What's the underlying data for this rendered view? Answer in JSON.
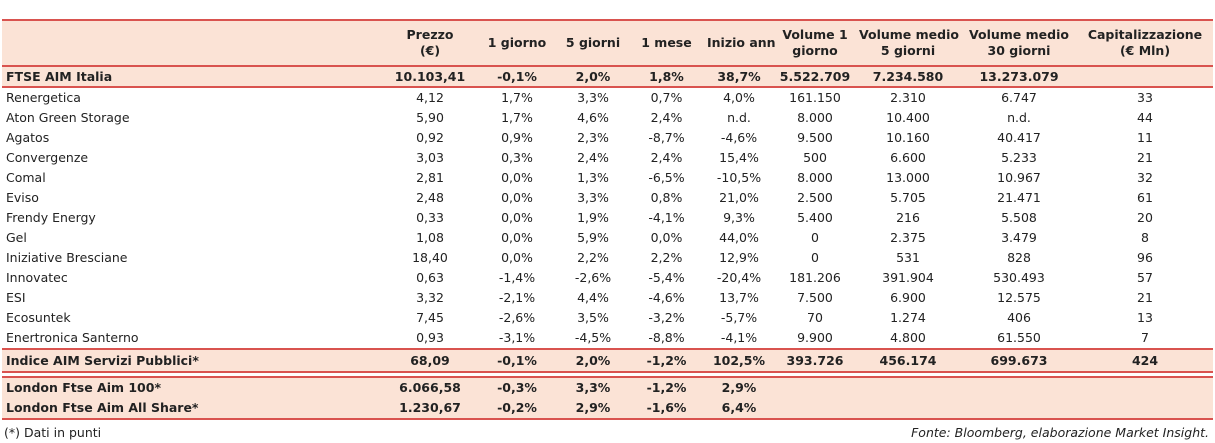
{
  "columns": [
    "",
    "Prezzo\n(€)",
    "1 giorno",
    "5 giorni",
    "1 mese",
    "Inizio anno",
    "Volume 1\ngiorno",
    "Volume medio\n5 giorni",
    "Volume medio\n30 giorni",
    "Capitalizzazione\n(€ Mln)"
  ],
  "main_index": [
    "FTSE AIM Italia",
    "10.103,41",
    "-0,1%",
    "2,0%",
    "1,8%",
    "38,7%",
    "5.522.709",
    "7.234.580",
    "13.273.079",
    ""
  ],
  "rows": [
    [
      "Renergetica",
      "4,12",
      "1,7%",
      "3,3%",
      "0,7%",
      "4,0%",
      "161.150",
      "2.310",
      "6.747",
      "33"
    ],
    [
      "Aton Green Storage",
      "5,90",
      "1,7%",
      "4,6%",
      "2,4%",
      "n.d.",
      "8.000",
      "10.400",
      "n.d.",
      "44"
    ],
    [
      "Agatos",
      "0,92",
      "0,9%",
      "2,3%",
      "-8,7%",
      "-4,6%",
      "9.500",
      "10.160",
      "40.417",
      "11"
    ],
    [
      "Convergenze",
      "3,03",
      "0,3%",
      "2,4%",
      "2,4%",
      "15,4%",
      "500",
      "6.600",
      "5.233",
      "21"
    ],
    [
      "Comal",
      "2,81",
      "0,0%",
      "1,3%",
      "-6,5%",
      "-10,5%",
      "8.000",
      "13.000",
      "10.967",
      "32"
    ],
    [
      "Eviso",
      "2,48",
      "0,0%",
      "3,3%",
      "0,8%",
      "21,0%",
      "2.500",
      "5.705",
      "21.471",
      "61"
    ],
    [
      "Frendy Energy",
      "0,33",
      "0,0%",
      "1,9%",
      "-4,1%",
      "9,3%",
      "5.400",
      "216",
      "5.508",
      "20"
    ],
    [
      "Gel",
      "1,08",
      "0,0%",
      "5,9%",
      "0,0%",
      "44,0%",
      "0",
      "2.375",
      "3.479",
      "8"
    ],
    [
      "Iniziative Bresciane",
      "18,40",
      "0,0%",
      "2,2%",
      "2,2%",
      "12,9%",
      "0",
      "531",
      "828",
      "96"
    ],
    [
      "Innovatec",
      "0,63",
      "-1,4%",
      "-2,6%",
      "-5,4%",
      "-20,4%",
      "181.206",
      "391.904",
      "530.493",
      "57"
    ],
    [
      "ESI",
      "3,32",
      "-2,1%",
      "4,4%",
      "-4,6%",
      "13,7%",
      "7.500",
      "6.900",
      "12.575",
      "21"
    ],
    [
      "Ecosuntek",
      "7,45",
      "-2,6%",
      "3,5%",
      "-3,2%",
      "-5,7%",
      "70",
      "1.274",
      "406",
      "13"
    ],
    [
      "Enertronica Santerno",
      "0,93",
      "-3,1%",
      "-4,5%",
      "-8,8%",
      "-4,1%",
      "9.900",
      "4.800",
      "61.550",
      "7"
    ]
  ],
  "sector_index": [
    "Indice AIM Servizi Pubblici*",
    "68,09",
    "-0,1%",
    "2,0%",
    "-1,2%",
    "102,5%",
    "393.726",
    "456.174",
    "699.673",
    "424"
  ],
  "london": [
    [
      "London Ftse Aim 100*",
      "6.066,58",
      "-0,3%",
      "3,3%",
      "-1,2%",
      "2,9%",
      "",
      "",
      "",
      ""
    ],
    [
      "London Ftse Aim All Share*",
      "1.230,67",
      "-0,2%",
      "2,9%",
      "-1,6%",
      "6,4%",
      "",
      "",
      "",
      ""
    ]
  ],
  "footnote": "(*) Dati in punti",
  "source": "Fonte: Bloomberg, elaborazione Market Insight."
}
